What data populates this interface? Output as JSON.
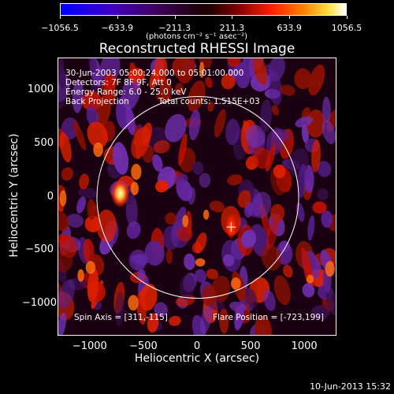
{
  "colorbar": {
    "tick_labels": [
      "−1056.5",
      "−633.9",
      "−211.3",
      "211.3",
      "633.9",
      "1056.5"
    ],
    "tick_values": [
      -1056.5,
      -633.9,
      -211.3,
      211.3,
      633.9,
      1056.5
    ],
    "units": "(photons cm⁻² s⁻¹ asec⁻²)",
    "range": [
      -1056.5,
      1056.5
    ]
  },
  "title": "Reconstructed RHESSI Image",
  "annotations": {
    "time_range": "30-Jun-2003 05:00:24.000 to 05:01:00.000",
    "detectors": "Detectors: 7F 8F 9F, Att 0",
    "energy": "Energy Range: 6.0 - 25.0 keV",
    "method": "Back Projection",
    "counts": "Total counts: 1.515E+03",
    "spin_axis": "Spin Axis = [311,-115]",
    "flare_position": "Flare Position = [-723,199]"
  },
  "axes": {
    "xlabel": "Heliocentric X (arcsec)",
    "ylabel": "Heliocentric Y (arcsec)",
    "x_ticks": [
      "−1000",
      "−500",
      "0",
      "500",
      "1000"
    ],
    "x_tick_values": [
      -1000,
      -500,
      0,
      500,
      1000
    ],
    "y_ticks": [
      "1000",
      "500",
      "0",
      "−500",
      "−1000"
    ],
    "y_tick_values": [
      1000,
      500,
      0,
      -500,
      -1000
    ],
    "xlim": [
      -1300,
      1300
    ],
    "ylim": [
      -1300,
      1300
    ]
  },
  "image": {
    "solar_disk_radius_arcsec": 940,
    "sources": [
      {
        "x": -723,
        "y": 199,
        "intensity": "high"
      },
      {
        "x": 311,
        "y": -115,
        "intensity": "medium"
      }
    ],
    "colors": {
      "high": "#ffff80",
      "medium": "#ff3000",
      "negative": "#6020a0",
      "low": "#300020"
    }
  },
  "timestamp": "10-Jun-2013 15:32"
}
